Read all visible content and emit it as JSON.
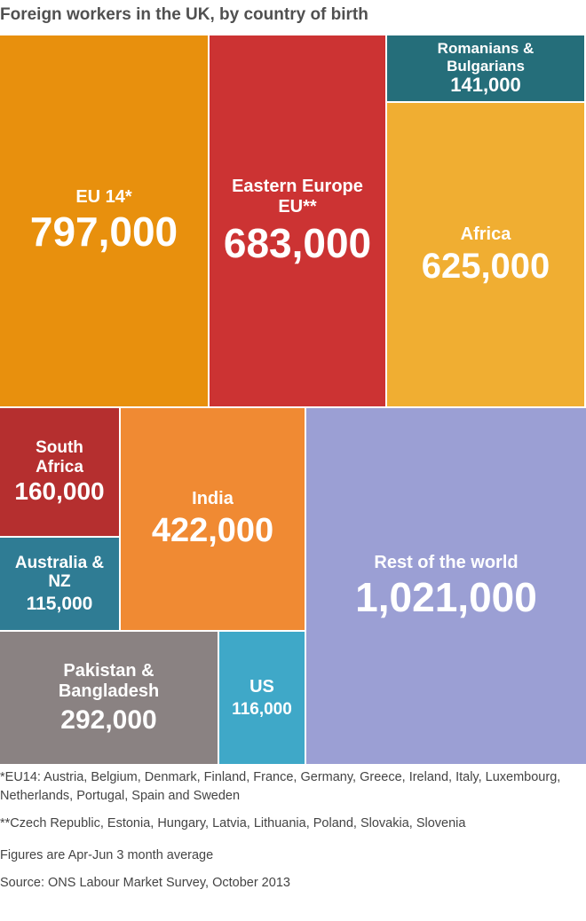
{
  "title": "Foreign workers in the UK, by country of birth",
  "chart_data": {
    "type": "treemap",
    "items": [
      {
        "label": "EU 14*",
        "value": 797000,
        "display": "797,000",
        "color": "#E8900D"
      },
      {
        "label": "Eastern Europe EU**",
        "value": 683000,
        "display": "683,000",
        "color": "#CC3333"
      },
      {
        "label": "Romanians & Bulgarians",
        "value": 141000,
        "display": "141,000",
        "color": "#256E7A"
      },
      {
        "label": "Africa",
        "value": 625000,
        "display": "625,000",
        "color": "#F0AE32"
      },
      {
        "label": "South Africa",
        "value": 160000,
        "display": "160,000",
        "color": "#B52F2F"
      },
      {
        "label": "India",
        "value": 422000,
        "display": "422,000",
        "color": "#F08A33"
      },
      {
        "label": "Australia & NZ",
        "value": 115000,
        "display": "115,000",
        "color": "#2F7C94"
      },
      {
        "label": "Rest of the world",
        "value": 1021000,
        "display": "1,021,000",
        "color": "#9B9FD4"
      },
      {
        "label": "Pakistan & Bangladesh",
        "value": 292000,
        "display": "292,000",
        "color": "#8A8282"
      },
      {
        "label": "US",
        "value": 116000,
        "display": "116,000",
        "color": "#3FA8C8"
      }
    ]
  },
  "footnotes": {
    "eu14": "*EU14: Austria, Belgium, Denmark, Finland, France, Germany, Greece, Ireland, Italy, Luxembourg, Netherlands, Portugal, Spain and Sweden",
    "eastern": "**Czech Republic, Estonia, Hungary, Latvia, Lithuania, Poland, Slovakia, Slovenia",
    "figures": "Figures are Apr-Jun 3 month average",
    "source": "Source: ONS Labour Market Survey, October 2013"
  }
}
